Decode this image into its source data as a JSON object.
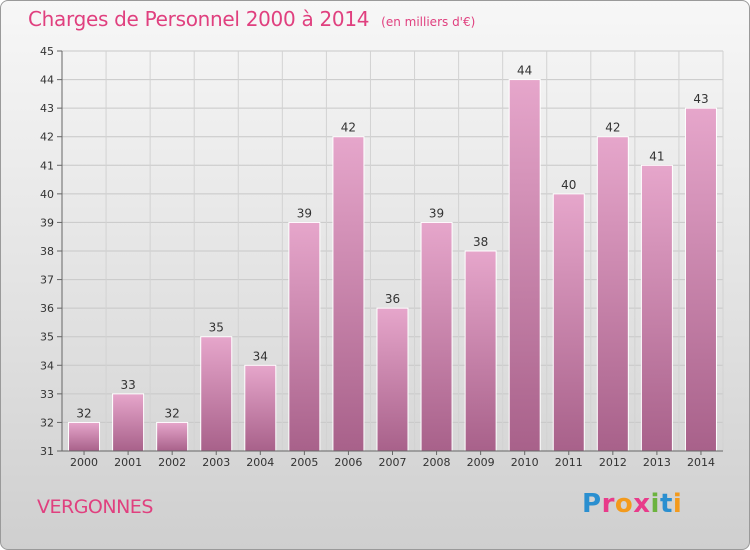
{
  "title": "Charges de Personnel 2000 à 2014",
  "subtitle": "(en milliers d'€)",
  "location": "VERGONNES",
  "logo": {
    "text": "Proxiti",
    "icon": "proxiti-logo"
  },
  "colors": {
    "title": "#e0407f",
    "bar": "#cf7aab",
    "bar_light": "#e6a6cb",
    "bar_dark": "#a8618a"
  },
  "chart_data": {
    "type": "bar",
    "categories": [
      "2000",
      "2001",
      "2002",
      "2003",
      "2004",
      "2005",
      "2006",
      "2007",
      "2008",
      "2009",
      "2010",
      "2011",
      "2012",
      "2013",
      "2014"
    ],
    "values": [
      32,
      33,
      32,
      35,
      34,
      39,
      42,
      36,
      39,
      38,
      44,
      40,
      42,
      41,
      43
    ],
    "ylim": [
      31,
      45
    ],
    "yticks": [
      31,
      32,
      33,
      34,
      35,
      36,
      37,
      38,
      39,
      40,
      41,
      42,
      43,
      44,
      45
    ],
    "grid": true,
    "data_labels": true,
    "xlabel": "",
    "ylabel": ""
  }
}
